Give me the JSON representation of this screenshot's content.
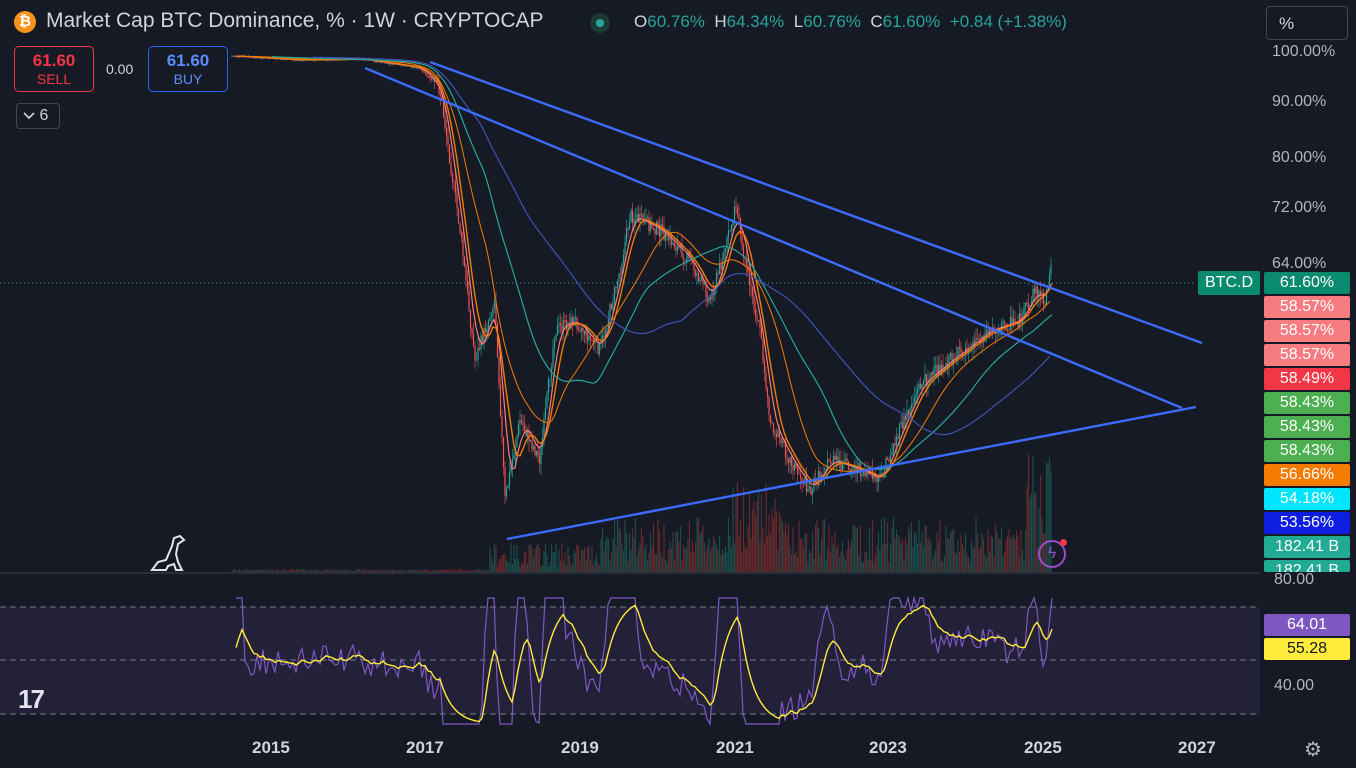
{
  "header": {
    "coin_glyph": "₿",
    "title": "Market Cap BTC Dominance, % · 1W · CRYPTOCAP",
    "open_key": "O",
    "open": "60.76%",
    "high_key": "H",
    "high": "64.34%",
    "low_key": "L",
    "low": "60.76%",
    "close_key": "C",
    "close": "61.60%",
    "change": "+0.84 (+1.38%)",
    "scale_mode": "%"
  },
  "trade": {
    "sell_price": "61.60",
    "sell_label": "SELL",
    "spread": "0.00",
    "buy_price": "61.60",
    "buy_label": "BUY"
  },
  "indicators_collapse": {
    "icon": "chevron-down-icon",
    "count": "6"
  },
  "price_axis": [
    "100.00%",
    "90.00%",
    "80.00%",
    "72.00%",
    "64.00%"
  ],
  "symbol_tag": "BTC.D",
  "price_labels": [
    {
      "text": "61.60%",
      "color": "#0a8a6e"
    },
    {
      "text": "58.57%",
      "color": "#f77c80"
    },
    {
      "text": "58.57%",
      "color": "#f77c80"
    },
    {
      "text": "58.57%",
      "color": "#f77c80"
    },
    {
      "text": "58.49%",
      "color": "#f23645"
    },
    {
      "text": "58.43%",
      "color": "#4caf50"
    },
    {
      "text": "58.43%",
      "color": "#4caf50"
    },
    {
      "text": "58.43%",
      "color": "#4caf50"
    },
    {
      "text": "56.66%",
      "color": "#f57c00"
    },
    {
      "text": "54.18%",
      "color": "#00e5ff"
    },
    {
      "text": "53.56%",
      "color": "#0d1ee0"
    },
    {
      "text": "182.41 B",
      "color": "#22ab94"
    },
    {
      "text": "182.41 B",
      "color": "#22ab94"
    }
  ],
  "rsi_axis": [
    "80.00",
    "40.00"
  ],
  "rsi_labels": [
    {
      "text": "64.01",
      "color": "#7e57c2"
    },
    {
      "text": "55.28",
      "color": "#ffeb3b"
    }
  ],
  "time_axis": [
    "2015",
    "2017",
    "2019",
    "2021",
    "2023",
    "2025",
    "2027"
  ],
  "icons": {
    "settings": "gear-icon",
    "logo": "tradingview-logo",
    "dino": "dinosaur-icon",
    "power": "lightning-icon"
  }
}
